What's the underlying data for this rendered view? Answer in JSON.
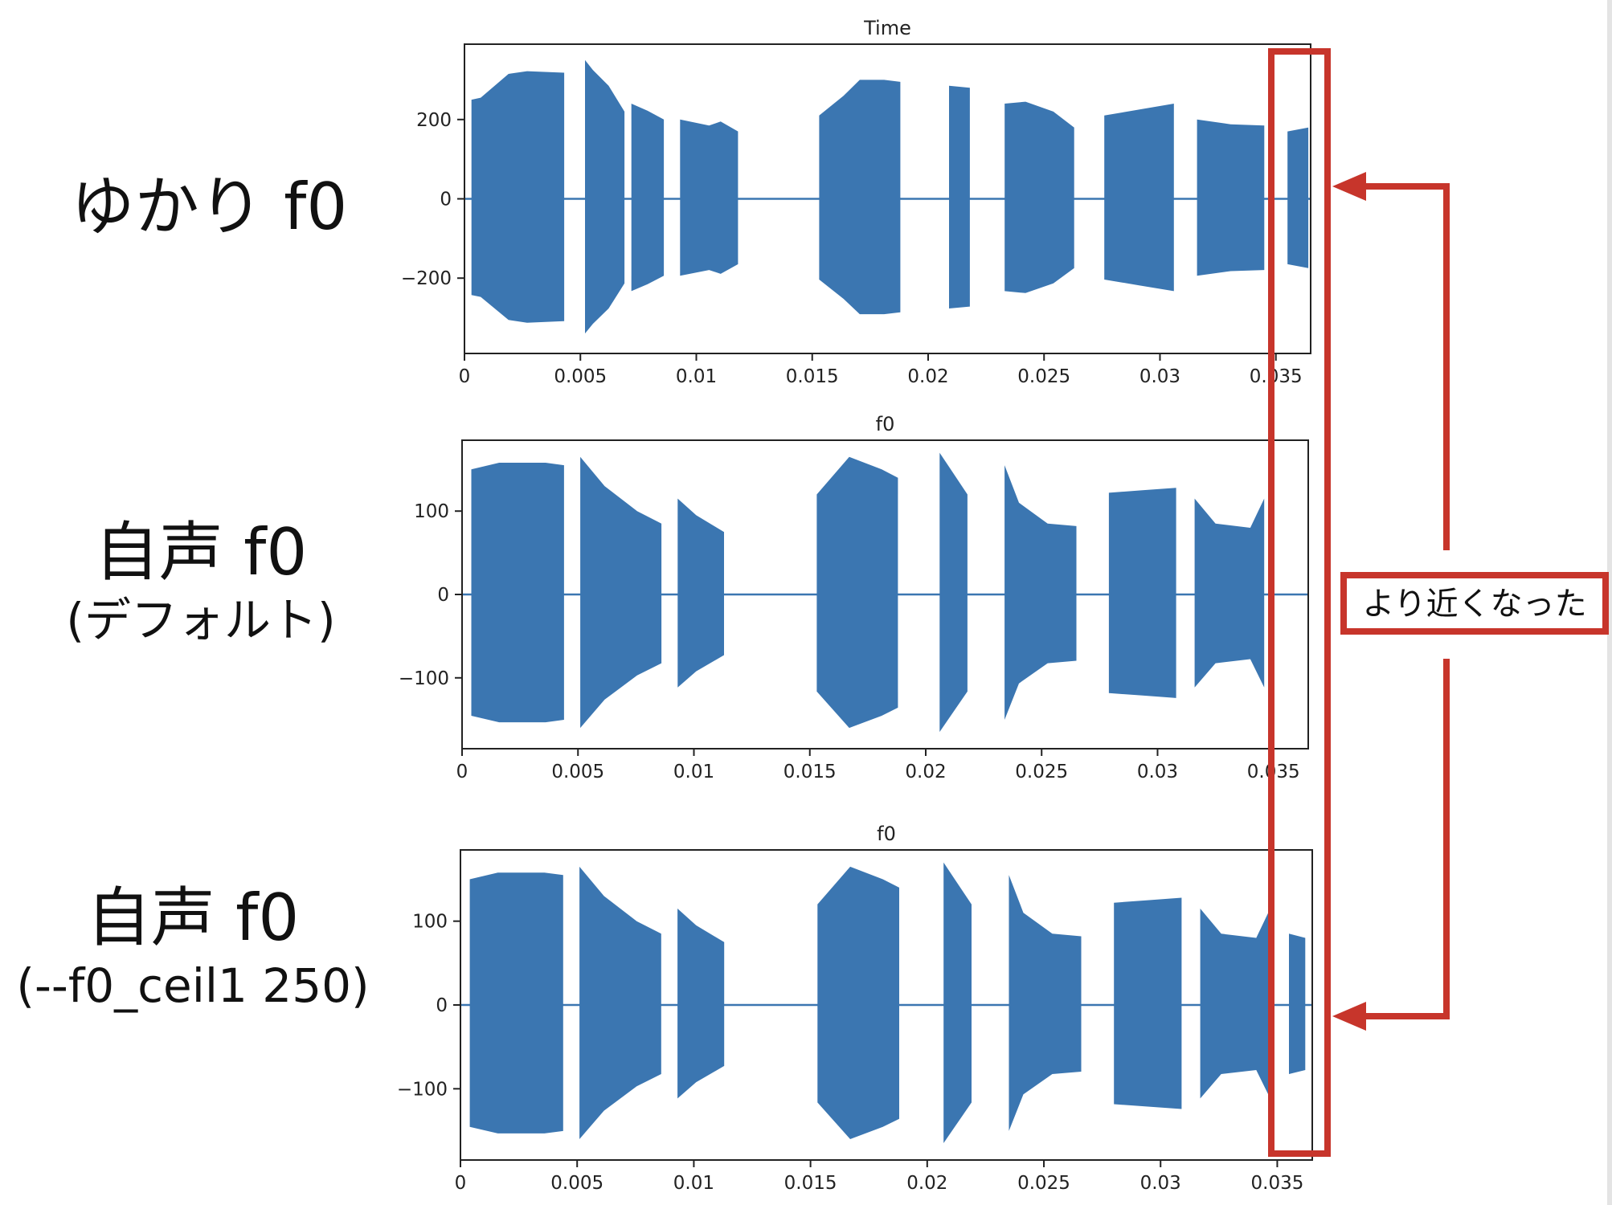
{
  "row_labels": [
    {
      "main": "ゆかり f0",
      "sub": ""
    },
    {
      "main": "自声 f0",
      "sub": "(デフォルト)"
    },
    {
      "main": "自声 f0",
      "sub": "(--f0_ceil1 250)"
    }
  ],
  "annotation": {
    "text": "より近くなった",
    "color": "#c7352b"
  },
  "colors": {
    "waveform": "#3b76b1",
    "annotation": "#c7352b",
    "axes": "#222222"
  },
  "chart_data": [
    {
      "type": "area",
      "title": "Time",
      "xlabel": "",
      "ylabel": "",
      "xlim": [
        0,
        0.0365
      ],
      "ylim": [
        -390,
        390
      ],
      "xtick_labels": [
        "0",
        "0.005",
        "0.01",
        "0.015",
        "0.02",
        "0.025",
        "0.03",
        "0.035"
      ],
      "xticks": [
        0,
        0.005,
        0.01,
        0.015,
        0.02,
        0.025,
        0.03,
        0.035
      ],
      "ytick_labels": [
        "200",
        "0",
        "−200"
      ],
      "yticks": [
        200,
        0,
        -200
      ],
      "series": [
        {
          "segments": [
            {
              "start": 0.0003,
              "end": 0.0043,
              "points": [
                [
                  0,
                  250
                ],
                [
                  0.1,
                  255
                ],
                [
                  0.4,
                  315
                ],
                [
                  0.6,
                  322
                ],
                [
                  1,
                  318
                ]
              ]
            },
            {
              "start": 0.0052,
              "end": 0.0069,
              "points": [
                [
                  0,
                  350
                ],
                [
                  0.2,
                  325
                ],
                [
                  0.6,
                  285
                ],
                [
                  1,
                  220
                ]
              ]
            },
            {
              "start": 0.0072,
              "end": 0.0086,
              "points": [
                [
                  0,
                  240
                ],
                [
                  0.5,
                  222
                ],
                [
                  1,
                  200
                ]
              ]
            },
            {
              "start": 0.0093,
              "end": 0.0118,
              "points": [
                [
                  0,
                  200
                ],
                [
                  0.5,
                  185
                ],
                [
                  0.7,
                  195
                ],
                [
                  1,
                  170
                ]
              ]
            },
            {
              "start": 0.0153,
              "end": 0.0188,
              "points": [
                [
                  0,
                  210
                ],
                [
                  0.3,
                  260
                ],
                [
                  0.5,
                  300
                ],
                [
                  0.8,
                  300
                ],
                [
                  1,
                  295
                ]
              ]
            },
            {
              "start": 0.0209,
              "end": 0.0218,
              "points": [
                [
                  0,
                  285
                ],
                [
                  1,
                  280
                ]
              ]
            },
            {
              "start": 0.0233,
              "end": 0.0263,
              "points": [
                [
                  0,
                  240
                ],
                [
                  0.3,
                  245
                ],
                [
                  0.7,
                  220
                ],
                [
                  1,
                  180
                ]
              ]
            },
            {
              "start": 0.0276,
              "end": 0.0306,
              "points": [
                [
                  0,
                  210
                ],
                [
                  0.5,
                  225
                ],
                [
                  1,
                  240
                ]
              ]
            },
            {
              "start": 0.0316,
              "end": 0.0345,
              "points": [
                [
                  0,
                  200
                ],
                [
                  0.5,
                  188
                ],
                [
                  1,
                  185
                ]
              ]
            },
            {
              "start": 0.0355,
              "end": 0.0364,
              "points": [
                [
                  0,
                  170
                ],
                [
                  1,
                  180
                ]
              ]
            }
          ]
        }
      ]
    },
    {
      "type": "area",
      "title": "f0",
      "xlabel": "",
      "ylabel": "",
      "xlim": [
        0,
        0.0365
      ],
      "ylim": [
        -185,
        185
      ],
      "xtick_labels": [
        "0",
        "0.005",
        "0.01",
        "0.015",
        "0.02",
        "0.025",
        "0.03",
        "0.035"
      ],
      "xticks": [
        0,
        0.005,
        0.01,
        0.015,
        0.02,
        0.025,
        0.03,
        0.035
      ],
      "ytick_labels": [
        "100",
        "0",
        "−100"
      ],
      "yticks": [
        100,
        0,
        -100
      ],
      "series": [
        {
          "segments": [
            {
              "start": 0.0004,
              "end": 0.0044,
              "points": [
                [
                  0,
                  150
                ],
                [
                  0.3,
                  158
                ],
                [
                  0.8,
                  158
                ],
                [
                  1,
                  155
                ]
              ]
            },
            {
              "start": 0.0051,
              "end": 0.0086,
              "points": [
                [
                  0,
                  165
                ],
                [
                  0.3,
                  130
                ],
                [
                  0.7,
                  100
                ],
                [
                  1,
                  85
                ]
              ]
            },
            {
              "start": 0.0093,
              "end": 0.0113,
              "points": [
                [
                  0,
                  115
                ],
                [
                  0.4,
                  95
                ],
                [
                  1,
                  75
                ]
              ]
            },
            {
              "start": 0.0153,
              "end": 0.0188,
              "points": [
                [
                  0,
                  120
                ],
                [
                  0.4,
                  165
                ],
                [
                  0.8,
                  150
                ],
                [
                  1,
                  140
                ]
              ]
            },
            {
              "start": 0.0206,
              "end": 0.0218,
              "points": [
                [
                  0,
                  170
                ],
                [
                  0.4,
                  150
                ],
                [
                  1,
                  120
                ]
              ]
            },
            {
              "start": 0.0234,
              "end": 0.0265,
              "points": [
                [
                  0,
                  155
                ],
                [
                  0.2,
                  110
                ],
                [
                  0.6,
                  85
                ],
                [
                  1,
                  82
                ]
              ]
            },
            {
              "start": 0.0279,
              "end": 0.0308,
              "points": [
                [
                  0,
                  122
                ],
                [
                  0.5,
                  125
                ],
                [
                  1,
                  128
                ]
              ]
            },
            {
              "start": 0.0316,
              "end": 0.0346,
              "points": [
                [
                  0,
                  115
                ],
                [
                  0.3,
                  85
                ],
                [
                  0.8,
                  80
                ],
                [
                  1,
                  115
                ]
              ]
            }
          ]
        }
      ]
    },
    {
      "type": "area",
      "title": "f0",
      "xlabel": "",
      "ylabel": "",
      "xlim": [
        0,
        0.0365
      ],
      "ylim": [
        -185,
        185
      ],
      "xtick_labels": [
        "0",
        "0.005",
        "0.01",
        "0.015",
        "0.02",
        "0.025",
        "0.03",
        "0.035"
      ],
      "xticks": [
        0,
        0.005,
        0.01,
        0.015,
        0.02,
        0.025,
        0.03,
        0.035
      ],
      "ytick_labels": [
        "100",
        "0",
        "−100"
      ],
      "yticks": [
        100,
        0,
        -100
      ],
      "series": [
        {
          "segments": [
            {
              "start": 0.0004,
              "end": 0.0044,
              "points": [
                [
                  0,
                  150
                ],
                [
                  0.3,
                  158
                ],
                [
                  0.8,
                  158
                ],
                [
                  1,
                  155
                ]
              ]
            },
            {
              "start": 0.0051,
              "end": 0.0086,
              "points": [
                [
                  0,
                  165
                ],
                [
                  0.3,
                  130
                ],
                [
                  0.7,
                  100
                ],
                [
                  1,
                  85
                ]
              ]
            },
            {
              "start": 0.0093,
              "end": 0.0113,
              "points": [
                [
                  0,
                  115
                ],
                [
                  0.4,
                  95
                ],
                [
                  1,
                  75
                ]
              ]
            },
            {
              "start": 0.0153,
              "end": 0.0188,
              "points": [
                [
                  0,
                  120
                ],
                [
                  0.4,
                  165
                ],
                [
                  0.8,
                  150
                ],
                [
                  1,
                  140
                ]
              ]
            },
            {
              "start": 0.0207,
              "end": 0.0219,
              "points": [
                [
                  0,
                  170
                ],
                [
                  0.4,
                  150
                ],
                [
                  1,
                  120
                ]
              ]
            },
            {
              "start": 0.0235,
              "end": 0.0266,
              "points": [
                [
                  0,
                  155
                ],
                [
                  0.2,
                  110
                ],
                [
                  0.6,
                  85
                ],
                [
                  1,
                  82
                ]
              ]
            },
            {
              "start": 0.028,
              "end": 0.0309,
              "points": [
                [
                  0,
                  122
                ],
                [
                  0.5,
                  125
                ],
                [
                  1,
                  128
                ]
              ]
            },
            {
              "start": 0.0317,
              "end": 0.0347,
              "points": [
                [
                  0,
                  115
                ],
                [
                  0.3,
                  85
                ],
                [
                  0.8,
                  80
                ],
                [
                  1,
                  115
                ]
              ]
            },
            {
              "start": 0.0355,
              "end": 0.0362,
              "points": [
                [
                  0,
                  85
                ],
                [
                  1,
                  80
                ]
              ]
            }
          ]
        }
      ]
    }
  ]
}
